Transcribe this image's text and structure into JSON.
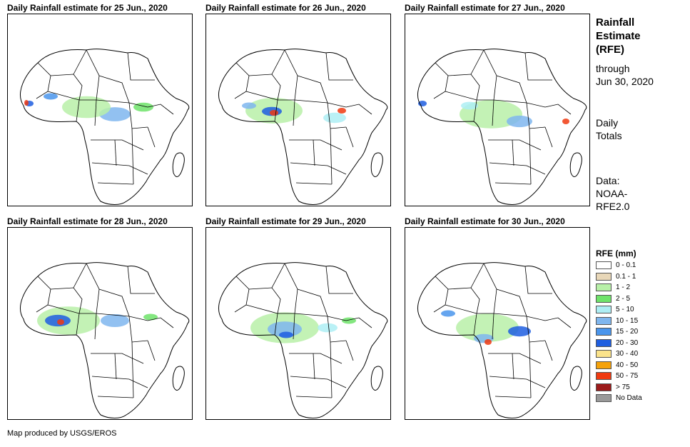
{
  "panels": [
    {
      "title": "Daily Rainfall estimate for 25 Jun., 2020"
    },
    {
      "title": "Daily Rainfall estimate for 26 Jun., 2020"
    },
    {
      "title": "Daily Rainfall estimate for 27 Jun., 2020"
    },
    {
      "title": "Daily Rainfall estimate for 28 Jun., 2020"
    },
    {
      "title": "Daily Rainfall estimate for 29 Jun., 2020"
    },
    {
      "title": "Daily Rainfall estimate for 30 Jun., 2020"
    }
  ],
  "side": {
    "heading_line1": "Rainfall",
    "heading_line2": "Estimate",
    "heading_line3": "(RFE)",
    "through_label": "through",
    "through_date": "Jun 30, 2020",
    "totals_line1": "Daily",
    "totals_line2": "Totals",
    "data_line1": "Data:",
    "data_line2": "NOAA-",
    "data_line3": "RFE2.0"
  },
  "legend": {
    "title": "RFE (mm)",
    "items": [
      {
        "label": "0 - 0.1",
        "color": "#ffffff"
      },
      {
        "label": "0.1 - 1",
        "color": "#e8d7b8"
      },
      {
        "label": "1 - 2",
        "color": "#b8f0a8"
      },
      {
        "label": "2 - 5",
        "color": "#6fe36a"
      },
      {
        "label": "5 - 10",
        "color": "#aeeef4"
      },
      {
        "label": "10 - 15",
        "color": "#7fb6ee"
      },
      {
        "label": "15 - 20",
        "color": "#4a95ec"
      },
      {
        "label": "20 - 30",
        "color": "#1f5ee0"
      },
      {
        "label": "30 - 40",
        "color": "#fbe38a"
      },
      {
        "label": "40 - 50",
        "color": "#f5a20a"
      },
      {
        "label": "50 - 75",
        "color": "#f03a10"
      },
      {
        "label": "> 75",
        "color": "#9c1b1b"
      },
      {
        "label": "No Data",
        "color": "#999999"
      }
    ]
  },
  "credit": "Map produced by USGS/EROS"
}
